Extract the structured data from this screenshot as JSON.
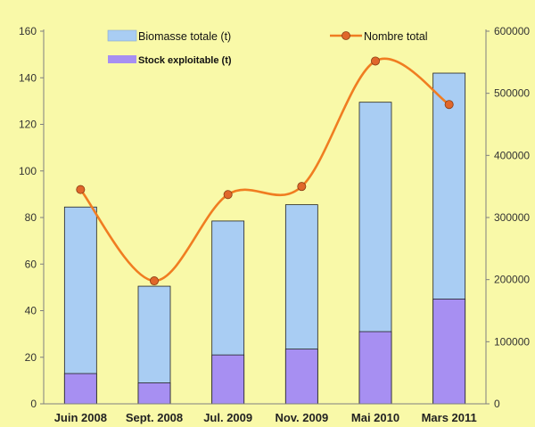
{
  "chart_data": {
    "type": "bar",
    "categories": [
      "Juin 2008",
      "Sept. 2008",
      "Jul. 2009",
      "Nov. 2009",
      "Mai 2010",
      "Mars 2011"
    ],
    "series": [
      {
        "name": "Biomasse totale (t)",
        "kind": "bar",
        "axis": "left",
        "color": "#a9cdf3",
        "values": [
          84.5,
          50.5,
          78.5,
          85.5,
          129.5,
          142
        ]
      },
      {
        "name": "Stock exploitable (t)",
        "kind": "bar",
        "axis": "left",
        "color": "#a78ff2",
        "values": [
          13,
          9,
          21,
          23.5,
          31,
          45
        ]
      },
      {
        "name": "Nombre total",
        "kind": "line",
        "axis": "right",
        "color": "#f07d21",
        "marker_color": "#e0672b",
        "values": [
          345000,
          198000,
          337000,
          350000,
          552000,
          482000
        ]
      }
    ],
    "ylim": [
      0,
      160
    ],
    "yticks": [
      "0",
      "20",
      "40",
      "60",
      "80",
      "100",
      "120",
      "140",
      "160"
    ],
    "y2lim": [
      0,
      600000
    ],
    "y2ticks": [
      "0",
      "100000",
      "200000",
      "300000",
      "400000",
      "500000",
      "600000"
    ],
    "plot_background": "#f9f9a8",
    "grid": false,
    "legend_position": "top"
  }
}
